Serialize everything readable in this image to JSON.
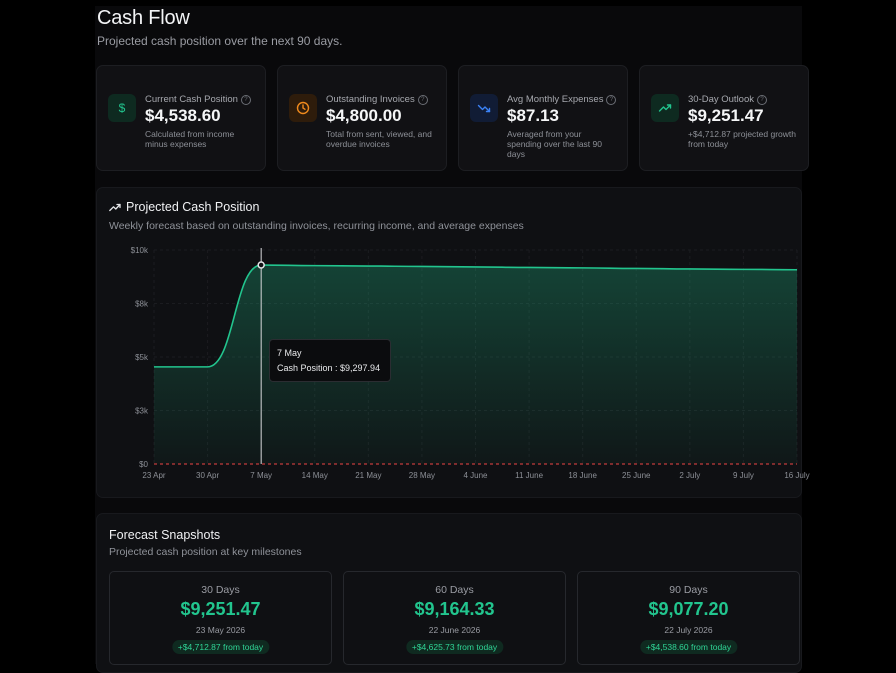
{
  "header": {
    "title": "Cash Flow",
    "subtitle": "Projected cash position over the next 90 days."
  },
  "stats": [
    {
      "label": "Current Cash Position",
      "value": "$4,538.60",
      "note": "Calculated from income minus expenses",
      "icon": "dollar-icon",
      "accent": "#22c58e"
    },
    {
      "label": "Outstanding Invoices",
      "value": "$4,800.00",
      "note": "Total from sent, viewed, and overdue invoices",
      "icon": "clock-icon",
      "accent": "#f08a1d"
    },
    {
      "label": "Avg Monthly Expenses",
      "value": "$87.13",
      "note": "Averaged from your spending over the last 90 days",
      "icon": "trending-down-icon",
      "accent": "#3b82f6"
    },
    {
      "label": "30-Day Outlook",
      "value": "$9,251.47",
      "note": "+$4,712.87 projected growth from today",
      "icon": "trending-up-icon",
      "accent": "#22c58e"
    }
  ],
  "chart_section": {
    "title": "Projected Cash Position",
    "subtitle": "Weekly forecast based on outstanding invoices, recurring income, and average expenses",
    "tooltip": {
      "date": "7 May",
      "text": "Cash Position : $9,297.94"
    }
  },
  "chart_data": {
    "type": "area",
    "series": [
      {
        "name": "Cash Position",
        "color": "#22c58e"
      }
    ],
    "categories": [
      "23 Apr",
      "30 Apr",
      "7 May",
      "14 May",
      "21 May",
      "28 May",
      "4 June",
      "11 June",
      "18 June",
      "25 June",
      "2 July",
      "9 July",
      "16 July"
    ],
    "values": [
      4538.6,
      4538.6,
      9297.94,
      9270.0,
      9251.47,
      9230.0,
      9210.0,
      9185.0,
      9164.33,
      9140.0,
      9115.0,
      9095.0,
      9077.2
    ],
    "y_ticks": [
      "$0",
      "$3k",
      "$5k",
      "$8k",
      "$10k"
    ],
    "ylim": [
      0,
      10000
    ],
    "reference_line": {
      "value": 0,
      "color": "#ef4444"
    },
    "active_index": 2
  },
  "snapshots": {
    "title": "Forecast Snapshots",
    "subtitle": "Projected cash position at key milestones",
    "items": [
      {
        "period": "30 Days",
        "value": "$9,251.47",
        "date": "23 May 2026",
        "change": "+$4,712.87 from today"
      },
      {
        "period": "60 Days",
        "value": "$9,164.33",
        "date": "22 June 2026",
        "change": "+$4,625.73 from today"
      },
      {
        "period": "90 Days",
        "value": "$9,077.20",
        "date": "22 July 2026",
        "change": "+$4,538.60 from today"
      }
    ]
  }
}
